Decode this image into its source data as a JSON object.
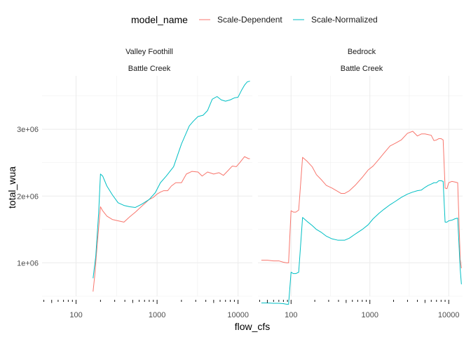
{
  "chart_data": {
    "type": "line",
    "xlabel": "flow_cfs",
    "ylabel": "total_wua",
    "x_scale": "log10",
    "x_ticks": [
      100,
      1000,
      10000
    ],
    "x_tick_labels": [
      "100",
      "1000",
      "10000"
    ],
    "y_ticks": [
      1000000,
      2000000,
      3000000
    ],
    "y_tick_labels": [
      "1e+06",
      "2e+06",
      "3e+06"
    ],
    "ylim": [
      500000,
      3800000
    ],
    "legend": {
      "title": "model_name",
      "placement": "top",
      "entries": [
        {
          "label": "Scale-Dependent",
          "color": "#F8766D"
        },
        {
          "label": "Scale-Normalized",
          "color": "#00BFC4"
        }
      ]
    },
    "panels": [
      {
        "strip": [
          "Valley Foothill",
          "Battle Creek"
        ],
        "xlim": [
          38,
          15000
        ],
        "series": [
          {
            "name": "Scale-Dependent",
            "color": "#F8766D",
            "x": [
              162,
              170,
              183,
              200,
              213,
              240,
              280,
              330,
              390,
              460,
              540,
              650,
              800,
              900,
              1000,
              1100,
              1200,
              1350,
              1500,
              1700,
              2000,
              2300,
              2700,
              3200,
              3600,
              4200,
              5000,
              5800,
              6600,
              7500,
              8500,
              9500,
              10500,
              12000,
              13500,
              14000
            ],
            "y": [
              570000,
              810000,
              1300000,
              1840000,
              1780000,
              1700000,
              1650000,
              1630000,
              1610000,
              1690000,
              1760000,
              1850000,
              1950000,
              1980000,
              2030000,
              2060000,
              2080000,
              2080000,
              2150000,
              2200000,
              2200000,
              2330000,
              2370000,
              2360000,
              2300000,
              2360000,
              2330000,
              2350000,
              2310000,
              2380000,
              2450000,
              2440000,
              2500000,
              2590000,
              2560000,
              2560000
            ]
          },
          {
            "name": "Scale-Normalized",
            "color": "#00BFC4",
            "x": [
              162,
              175,
              190,
              200,
              213,
              240,
              280,
              330,
              390,
              460,
              540,
              650,
              800,
              950,
              1100,
              1300,
              1600,
              2000,
              2500,
              2800,
              3200,
              3700,
              4200,
              4800,
              5500,
              6200,
              7000,
              8000,
              9000,
              10000,
              11000,
              12000,
              13000,
              14000
            ],
            "y": [
              770000,
              1100000,
              1750000,
              2330000,
              2300000,
              2150000,
              2020000,
              1900000,
              1860000,
              1840000,
              1830000,
              1880000,
              1950000,
              2050000,
              2200000,
              2300000,
              2440000,
              2780000,
              3050000,
              3120000,
              3190000,
              3210000,
              3280000,
              3450000,
              3490000,
              3440000,
              3420000,
              3440000,
              3470000,
              3480000,
              3580000,
              3660000,
              3710000,
              3720000
            ]
          }
        ]
      },
      {
        "strip": [
          "Bedrock",
          "Battle Creek"
        ],
        "xlim": [
          38,
          15000
        ],
        "series": [
          {
            "name": "Scale-Dependent",
            "color": "#F8766D",
            "x": [
              42,
              50,
              60,
              70,
              80,
              88,
              93,
              100,
              107,
              115,
              125,
              140,
              160,
              185,
              210,
              240,
              280,
              330,
              390,
              430,
              480,
              550,
              650,
              800,
              950,
              1100,
              1300,
              1500,
              1800,
              2100,
              2500,
              3000,
              3500,
              4000,
              4500,
              5000,
              5500,
              6000,
              6500,
              7000,
              7500,
              8000,
              8500,
              9000,
              9500,
              10000,
              11000,
              12000,
              13000,
              14000,
              14500
            ],
            "y": [
              1040000,
              1040000,
              1030000,
              1030000,
              1010000,
              1000000,
              1000000,
              1780000,
              1760000,
              1760000,
              1790000,
              2580000,
              2520000,
              2440000,
              2320000,
              2250000,
              2160000,
              2120000,
              2070000,
              2040000,
              2040000,
              2080000,
              2160000,
              2280000,
              2390000,
              2450000,
              2550000,
              2640000,
              2750000,
              2790000,
              2840000,
              2940000,
              2970000,
              2900000,
              2930000,
              2930000,
              2920000,
              2910000,
              2830000,
              2840000,
              2860000,
              2860000,
              2840000,
              2120000,
              2110000,
              2200000,
              2220000,
              2210000,
              2200000,
              1050000,
              920000
            ]
          },
          {
            "name": "Scale-Normalized",
            "color": "#00BFC4",
            "x": [
              42,
              50,
              60,
              70,
              80,
              88,
              93,
              100,
              107,
              115,
              125,
              140,
              160,
              185,
              210,
              240,
              280,
              330,
              390,
              430,
              480,
              550,
              650,
              800,
              950,
              1100,
              1300,
              1500,
              1800,
              2100,
              2500,
              3000,
              3500,
              4000,
              4500,
              5000,
              5500,
              6000,
              6500,
              7000,
              7500,
              8000,
              8500,
              9000,
              9500,
              10000,
              11000,
              12000,
              13000,
              14000,
              14500
            ],
            "y": [
              400000,
              400000,
              395000,
              395000,
              390000,
              380000,
              380000,
              860000,
              840000,
              840000,
              860000,
              1680000,
              1620000,
              1560000,
              1500000,
              1460000,
              1400000,
              1360000,
              1340000,
              1340000,
              1340000,
              1370000,
              1430000,
              1500000,
              1570000,
              1660000,
              1740000,
              1800000,
              1870000,
              1920000,
              1980000,
              2030000,
              2060000,
              2080000,
              2090000,
              2130000,
              2160000,
              2180000,
              2200000,
              2200000,
              2230000,
              2230000,
              2220000,
              1610000,
              1610000,
              1630000,
              1640000,
              1660000,
              1670000,
              900000,
              680000
            ]
          }
        ]
      }
    ]
  }
}
